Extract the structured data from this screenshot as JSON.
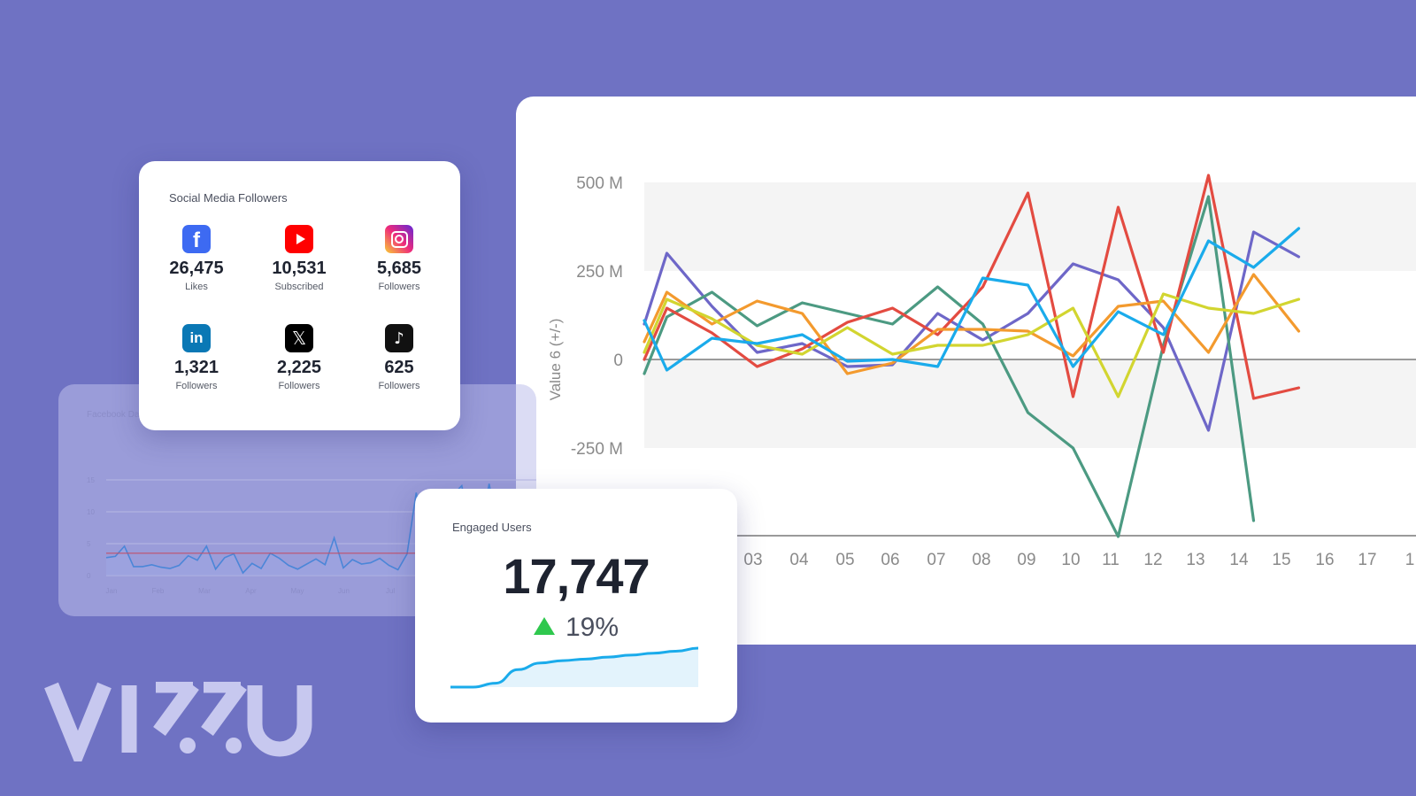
{
  "chart_data": [
    {
      "type": "line",
      "ylabel": "Value 6 (+/-)",
      "y_ticks": [
        "500 M",
        "250 M",
        "0",
        "-250 M"
      ],
      "y_tick_values": [
        500,
        250,
        0,
        -250
      ],
      "ylim": [
        -500,
        500
      ],
      "x_tick_labels": [
        "03",
        "04",
        "05",
        "06",
        "07",
        "08",
        "09",
        "10",
        "11",
        "12",
        "13",
        "14",
        "15",
        "16",
        "17",
        "1"
      ],
      "x": [
        1,
        1.5,
        2,
        2.5,
        3,
        3.5,
        4,
        4.5,
        5,
        5.5,
        6,
        6.5,
        7,
        7.5,
        8,
        8.5,
        9,
        9.5,
        10,
        10.5,
        11,
        11.5,
        12,
        12.5,
        13,
        13.5,
        14,
        14.5,
        15,
        15.5,
        16,
        16.5,
        17,
        17.5
      ],
      "series": [
        {
          "color": "#6e67c8",
          "values": [
            100,
            300,
            null,
            150,
            null,
            20,
            null,
            45,
            null,
            -20,
            null,
            -15,
            null,
            130,
            null,
            55,
            null,
            130,
            null,
            270,
            null,
            225,
            null,
            90,
            null,
            -200,
            null,
            360,
            null,
            290,
            null,
            null,
            null,
            null
          ]
        },
        {
          "color": "#4c9a82",
          "values": [
            -40,
            120,
            null,
            190,
            null,
            95,
            null,
            160,
            null,
            130,
            null,
            100,
            null,
            205,
            null,
            100,
            null,
            -150,
            null,
            -250,
            null,
            -500,
            null,
            40,
            null,
            460,
            null,
            -455,
            null,
            null,
            null,
            null,
            null,
            null
          ]
        },
        {
          "color": "#e34b41",
          "values": [
            0,
            145,
            null,
            75,
            null,
            -20,
            null,
            30,
            null,
            105,
            null,
            145,
            null,
            70,
            null,
            205,
            null,
            470,
            null,
            -105,
            null,
            430,
            null,
            20,
            null,
            520,
            null,
            -110,
            null,
            -80,
            null,
            null,
            null,
            null
          ]
        },
        {
          "color": "#f39a2e",
          "values": [
            50,
            190,
            null,
            100,
            null,
            165,
            null,
            130,
            null,
            -40,
            null,
            -10,
            null,
            85,
            null,
            85,
            null,
            80,
            null,
            10,
            null,
            150,
            null,
            165,
            null,
            20,
            null,
            240,
            null,
            80,
            null,
            null,
            null,
            null
          ]
        },
        {
          "color": "#d2d530",
          "values": [
            20,
            170,
            null,
            115,
            null,
            40,
            null,
            15,
            null,
            90,
            null,
            15,
            null,
            40,
            null,
            40,
            null,
            70,
            null,
            145,
            null,
            -105,
            null,
            185,
            null,
            145,
            null,
            130,
            null,
            170,
            null,
            null,
            null,
            null
          ]
        },
        {
          "color": "#1aabeb",
          "values": [
            110,
            -30,
            null,
            60,
            null,
            45,
            null,
            70,
            null,
            -5,
            null,
            0,
            null,
            -20,
            null,
            230,
            null,
            210,
            null,
            -20,
            null,
            135,
            null,
            70,
            null,
            335,
            null,
            260,
            null,
            370,
            null,
            null,
            null,
            null
          ]
        }
      ]
    },
    {
      "type": "line",
      "title": "Facebook Da",
      "y_ticks": [
        "15",
        "10",
        "5",
        "0"
      ],
      "ylim": [
        0,
        15
      ],
      "x_tick_labels": [
        "Jan",
        "Feb",
        "Mar",
        "Apr",
        "May",
        "Jun",
        "Jul"
      ],
      "reference_value": 3.5,
      "values": [
        2.8,
        3,
        4.6,
        1.4,
        1.4,
        1.7,
        1.3,
        1.1,
        1.6,
        3.1,
        2.4,
        4.6,
        1,
        2.8,
        3.4,
        0.4,
        1.9,
        1.1,
        3.5,
        2.7,
        1.6,
        1,
        1.8,
        2.6,
        1.7,
        5.9,
        1.2,
        2.5,
        1.8,
        2,
        2.7,
        1.6,
        0.9,
        3.4,
        13,
        6.1,
        6.5,
        5.8,
        12.6,
        14.1,
        6.3,
        6.6,
        14.4,
        6.8
      ]
    }
  ],
  "social": {
    "title": "Social Media Followers",
    "items": [
      {
        "network": "facebook-icon",
        "color": "#3d6af2",
        "count": "26,475",
        "label": "Likes"
      },
      {
        "network": "youtube-icon",
        "color": "#ff0000",
        "count": "10,531",
        "label": "Subscribed"
      },
      {
        "network": "instagram-icon",
        "color": "#e1306c",
        "count": "5,685",
        "label": "Followers"
      },
      {
        "network": "linkedin-icon",
        "color": "#0a78b5",
        "count": "1,321",
        "label": "Followers"
      },
      {
        "network": "x-icon",
        "color": "#000000",
        "count": "2,225",
        "label": "Followers"
      },
      {
        "network": "tiktok-icon",
        "color": "#111111",
        "count": "625",
        "label": "Followers"
      }
    ]
  },
  "engaged": {
    "title": "Engaged Users",
    "value": "17,747",
    "change": "19%",
    "trend": [
      0,
      0,
      0.1,
      0.45,
      0.62,
      0.68,
      0.72,
      0.77,
      0.82,
      0.87,
      0.92,
      1
    ]
  },
  "brand": {
    "logo": "vizzu-logo",
    "color": "#c7c8ef"
  }
}
